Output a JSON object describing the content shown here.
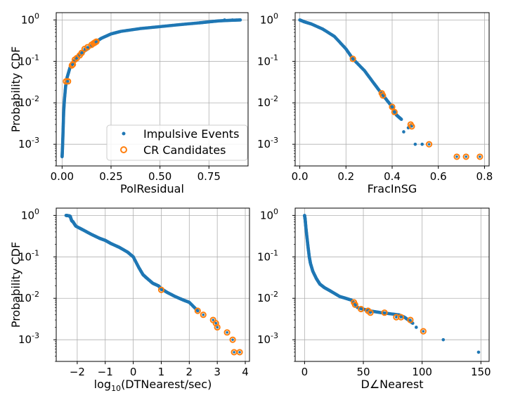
{
  "colors": {
    "impulsive": "#1f77b4",
    "candidate": "#ff7f0e",
    "grid": "#b0b0b0",
    "axis": "#000000",
    "legend_border": "#cccccc"
  },
  "legend": {
    "placement": "lower-right of top-left panel",
    "entries": [
      "Impulsive Events",
      "CR Candidates"
    ]
  },
  "chart_data": [
    {
      "type": "scatter",
      "xlabel": "PolResidual",
      "ylabel": "Probability CDF",
      "yscale": "log",
      "xlim": [
        -0.03,
        0.95
      ],
      "ylim": [
        0.0003,
        1.5
      ],
      "xticks": [
        0.0,
        0.25,
        0.5,
        0.75
      ],
      "xtick_labels": [
        "0.00",
        "0.25",
        "0.50",
        "0.75"
      ],
      "yticks": [
        0.001,
        0.01,
        0.1,
        1
      ],
      "ytick_exponents": [
        "-3",
        "-2",
        "-1",
        "0"
      ],
      "impulsive_curve": [
        [
          0.0,
          0.0005
        ],
        [
          0.002,
          0.0008
        ],
        [
          0.004,
          0.0015
        ],
        [
          0.006,
          0.003
        ],
        [
          0.008,
          0.006
        ],
        [
          0.012,
          0.012
        ],
        [
          0.018,
          0.025
        ],
        [
          0.025,
          0.04
        ],
        [
          0.04,
          0.07
        ],
        [
          0.06,
          0.1
        ],
        [
          0.08,
          0.13
        ],
        [
          0.1,
          0.16
        ],
        [
          0.13,
          0.2
        ],
        [
          0.16,
          0.27
        ],
        [
          0.2,
          0.36
        ],
        [
          0.25,
          0.46
        ],
        [
          0.3,
          0.53
        ],
        [
          0.4,
          0.62
        ],
        [
          0.5,
          0.69
        ],
        [
          0.6,
          0.77
        ],
        [
          0.7,
          0.85
        ],
        [
          0.75,
          0.9
        ],
        [
          0.8,
          0.95
        ],
        [
          0.86,
          0.98
        ],
        [
          0.91,
          1.0
        ]
      ],
      "impulsive_extra": [
        [
          0.83,
          1.0
        ],
        [
          0.87,
          1.0
        ],
        [
          0.91,
          1.0
        ]
      ],
      "candidates": [
        [
          0.02,
          0.033
        ],
        [
          0.03,
          0.033
        ],
        [
          0.05,
          0.08
        ],
        [
          0.055,
          0.085
        ],
        [
          0.065,
          0.11
        ],
        [
          0.075,
          0.12
        ],
        [
          0.09,
          0.14
        ],
        [
          0.1,
          0.16
        ],
        [
          0.115,
          0.2
        ],
        [
          0.13,
          0.22
        ],
        [
          0.15,
          0.25
        ],
        [
          0.16,
          0.27
        ],
        [
          0.165,
          0.28
        ],
        [
          0.17,
          0.29
        ],
        [
          0.175,
          0.3
        ]
      ]
    },
    {
      "type": "scatter",
      "xlabel": "FracInSG",
      "ylabel": "",
      "yscale": "log",
      "xlim": [
        -0.02,
        0.82
      ],
      "ylim": [
        0.0003,
        1.5
      ],
      "xticks": [
        0.0,
        0.2,
        0.4,
        0.6,
        0.8
      ],
      "xtick_labels": [
        "0.0",
        "0.2",
        "0.4",
        "0.6",
        "0.8"
      ],
      "yticks": [
        0.001,
        0.01,
        0.1,
        1
      ],
      "ytick_exponents": [
        "-3",
        "-2",
        "-1",
        "0"
      ],
      "impulsive_curve": [
        [
          0.0,
          1.0
        ],
        [
          0.02,
          0.9
        ],
        [
          0.05,
          0.8
        ],
        [
          0.1,
          0.6
        ],
        [
          0.15,
          0.4
        ],
        [
          0.2,
          0.2
        ],
        [
          0.23,
          0.115
        ],
        [
          0.28,
          0.06
        ],
        [
          0.32,
          0.03
        ],
        [
          0.35,
          0.018
        ],
        [
          0.37,
          0.013
        ],
        [
          0.4,
          0.008
        ],
        [
          0.41,
          0.006
        ],
        [
          0.42,
          0.005
        ],
        [
          0.44,
          0.004
        ]
      ],
      "impulsive_extra": [
        [
          0.45,
          0.002
        ],
        [
          0.47,
          0.0025
        ],
        [
          0.5,
          0.001
        ],
        [
          0.53,
          0.001
        ]
      ],
      "candidates": [
        [
          0.23,
          0.115
        ],
        [
          0.355,
          0.017
        ],
        [
          0.36,
          0.015
        ],
        [
          0.4,
          0.008
        ],
        [
          0.41,
          0.006
        ],
        [
          0.48,
          0.003
        ],
        [
          0.485,
          0.0027
        ],
        [
          0.56,
          0.001
        ],
        [
          0.68,
          0.0005
        ],
        [
          0.72,
          0.0005
        ],
        [
          0.78,
          0.0005
        ]
      ]
    },
    {
      "type": "scatter",
      "xlabel": "log10(DTNearest/sec)",
      "ylabel": "Probability CDF",
      "yscale": "log",
      "xlim": [
        -2.75,
        4.15
      ],
      "ylim": [
        0.0003,
        1.5
      ],
      "xticks": [
        -2,
        -1,
        0,
        1,
        2,
        3,
        4
      ],
      "xtick_labels": [
        "−2",
        "−1",
        "0",
        "1",
        "2",
        "3",
        "4"
      ],
      "yticks": [
        0.001,
        0.01,
        0.1,
        1
      ],
      "ytick_exponents": [
        "-3",
        "-2",
        "-1",
        "0"
      ],
      "impulsive_curve": [
        [
          -2.4,
          1.0
        ],
        [
          -2.3,
          0.98
        ],
        [
          -2.25,
          0.95
        ],
        [
          -2.2,
          0.75
        ],
        [
          -2.15,
          0.7
        ],
        [
          -2.05,
          0.55
        ],
        [
          -1.8,
          0.45
        ],
        [
          -1.5,
          0.35
        ],
        [
          -1.2,
          0.28
        ],
        [
          -1.0,
          0.25
        ],
        [
          -0.8,
          0.21
        ],
        [
          -0.5,
          0.17
        ],
        [
          -0.2,
          0.13
        ],
        [
          0.0,
          0.1
        ],
        [
          0.2,
          0.055
        ],
        [
          0.35,
          0.037
        ],
        [
          0.5,
          0.03
        ],
        [
          0.7,
          0.023
        ],
        [
          0.9,
          0.02
        ],
        [
          1.0,
          0.017
        ],
        [
          1.2,
          0.014
        ],
        [
          1.5,
          0.011
        ],
        [
          1.8,
          0.009
        ],
        [
          2.0,
          0.008
        ],
        [
          2.3,
          0.005
        ]
      ],
      "impulsive_extra": [],
      "candidates": [
        [
          1.0,
          0.016
        ],
        [
          2.3,
          0.005
        ],
        [
          2.5,
          0.004
        ],
        [
          2.85,
          0.003
        ],
        [
          2.95,
          0.0025
        ],
        [
          3.0,
          0.002
        ],
        [
          3.35,
          0.0015
        ],
        [
          3.55,
          0.001
        ],
        [
          3.6,
          0.0005
        ],
        [
          3.8,
          0.0005
        ]
      ]
    },
    {
      "type": "scatter",
      "xlabel": "D∠Nearest",
      "ylabel": "",
      "yscale": "log",
      "xlim": [
        -8,
        157
      ],
      "ylim": [
        0.0003,
        1.5
      ],
      "xticks": [
        0,
        50,
        100,
        150
      ],
      "xtick_labels": [
        "0",
        "50",
        "100",
        "150"
      ],
      "yticks": [
        0.001,
        0.01,
        0.1,
        1
      ],
      "ytick_exponents": [
        "-3",
        "-2",
        "-1",
        "0"
      ],
      "impulsive_curve": [
        [
          0.0,
          1.0
        ],
        [
          0.5,
          0.8
        ],
        [
          1.0,
          0.55
        ],
        [
          2.0,
          0.3
        ],
        [
          3.0,
          0.17
        ],
        [
          4.0,
          0.1
        ],
        [
          5.0,
          0.07
        ],
        [
          7.0,
          0.045
        ],
        [
          10.0,
          0.03
        ],
        [
          13.0,
          0.022
        ],
        [
          17.0,
          0.018
        ],
        [
          22.0,
          0.015
        ],
        [
          30.0,
          0.011
        ],
        [
          35.0,
          0.01
        ],
        [
          40.0,
          0.009
        ],
        [
          45.0,
          0.006
        ],
        [
          55.0,
          0.005
        ],
        [
          65.0,
          0.0045
        ],
        [
          80.0,
          0.004
        ],
        [
          85.0,
          0.0035
        ],
        [
          92.0,
          0.0025
        ]
      ],
      "impulsive_extra": [
        [
          95.0,
          0.002
        ],
        [
          118.0,
          0.001
        ],
        [
          148.0,
          0.0005
        ]
      ],
      "candidates": [
        [
          42.0,
          0.008
        ],
        [
          43.0,
          0.007
        ],
        [
          48.0,
          0.0055
        ],
        [
          54.0,
          0.005
        ],
        [
          56.0,
          0.0045
        ],
        [
          68.0,
          0.0045
        ],
        [
          78.0,
          0.0035
        ],
        [
          82.0,
          0.0035
        ],
        [
          90.0,
          0.003
        ],
        [
          101.0,
          0.0016
        ]
      ]
    }
  ]
}
